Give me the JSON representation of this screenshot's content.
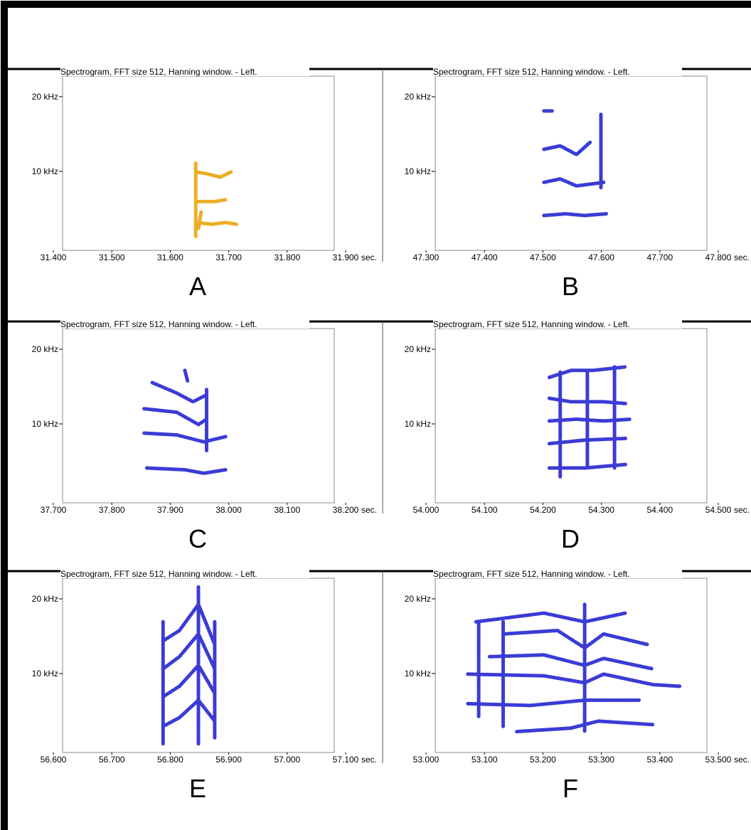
{
  "chart_data": [
    {
      "type": "spectrogram",
      "title": "Spectrogram, FFT size 512, Hanning window. - Left.",
      "panel_label": "A",
      "color": "#e8a000",
      "xlim": [
        31.4,
        31.9
      ],
      "xticks": [
        {
          "value": 31.4,
          "label": "31.400"
        },
        {
          "value": 31.5,
          "label": "31.500"
        },
        {
          "value": 31.6,
          "label": "31.600"
        },
        {
          "value": 31.7,
          "label": "31.700"
        },
        {
          "value": 31.8,
          "label": "31.800"
        },
        {
          "value": 31.9,
          "label": "31.900"
        }
      ],
      "x_unit": "sec.",
      "ylim": [
        0,
        22
      ],
      "yticks": [
        {
          "value": 10,
          "label": "10 kHz"
        },
        {
          "value": 20,
          "label": "20 kHz"
        }
      ]
    },
    {
      "type": "spectrogram",
      "title": "Spectrogram, FFT size 512, Hanning window. - Left.",
      "panel_label": "B",
      "color": "#1a1ad0",
      "xlim": [
        47.3,
        47.8
      ],
      "xticks": [
        {
          "value": 47.3,
          "label": "47.300"
        },
        {
          "value": 47.4,
          "label": "47.400"
        },
        {
          "value": 47.5,
          "label": "47.500"
        },
        {
          "value": 47.6,
          "label": "47.600"
        },
        {
          "value": 47.7,
          "label": "47.700"
        },
        {
          "value": 47.8,
          "label": "47.800"
        }
      ],
      "x_unit": "sec.",
      "ylim": [
        0,
        22
      ],
      "yticks": [
        {
          "value": 10,
          "label": "10 kHz"
        },
        {
          "value": 20,
          "label": "20 kHz"
        }
      ]
    },
    {
      "type": "spectrogram",
      "title": "Spectrogram, FFT size 512, Hanning window. - Left.",
      "panel_label": "C",
      "color": "#1a1ad0",
      "xlim": [
        37.7,
        38.2
      ],
      "xticks": [
        {
          "value": 37.7,
          "label": "37.700"
        },
        {
          "value": 37.8,
          "label": "37.800"
        },
        {
          "value": 37.9,
          "label": "37.900"
        },
        {
          "value": 38.0,
          "label": "38.000"
        },
        {
          "value": 38.1,
          "label": "38.100"
        },
        {
          "value": 38.2,
          "label": "38.200"
        }
      ],
      "x_unit": "sec.",
      "ylim": [
        0,
        22
      ],
      "yticks": [
        {
          "value": 10,
          "label": "10 kHz"
        },
        {
          "value": 20,
          "label": "20 kHz"
        }
      ]
    },
    {
      "type": "spectrogram",
      "title": "Spectrogram, FFT size 512, Hanning window. - Left.",
      "panel_label": "D",
      "color": "#1a1ad0",
      "xlim": [
        54.0,
        54.5
      ],
      "xticks": [
        {
          "value": 54.0,
          "label": "54.000"
        },
        {
          "value": 54.1,
          "label": "54.100"
        },
        {
          "value": 54.2,
          "label": "54.200"
        },
        {
          "value": 54.3,
          "label": "54.300"
        },
        {
          "value": 54.4,
          "label": "54.400"
        },
        {
          "value": 54.5,
          "label": "54.500"
        }
      ],
      "x_unit": "sec.",
      "ylim": [
        0,
        22
      ],
      "yticks": [
        {
          "value": 10,
          "label": "10 kHz"
        },
        {
          "value": 20,
          "label": "20 kHz"
        }
      ]
    },
    {
      "type": "spectrogram",
      "title": "Spectrogram, FFT size 512, Hanning window. - Left.",
      "panel_label": "E",
      "color": "#1a1ad0",
      "xlim": [
        56.6,
        57.1
      ],
      "xticks": [
        {
          "value": 56.6,
          "label": "56.600"
        },
        {
          "value": 56.7,
          "label": "56.700"
        },
        {
          "value": 56.8,
          "label": "56.800"
        },
        {
          "value": 56.9,
          "label": "56.900"
        },
        {
          "value": 57.0,
          "label": "57.000"
        },
        {
          "value": 57.1,
          "label": "57.100"
        }
      ],
      "x_unit": "sec.",
      "ylim": [
        0,
        22
      ],
      "yticks": [
        {
          "value": 10,
          "label": "10 kHz"
        },
        {
          "value": 20,
          "label": "20 kHz"
        }
      ]
    },
    {
      "type": "spectrogram",
      "title": "Spectrogram, FFT size 512, Hanning window. - Left.",
      "panel_label": "F",
      "color": "#1a1ad0",
      "xlim": [
        53.0,
        53.5
      ],
      "xticks": [
        {
          "value": 53.0,
          "label": "53.000"
        },
        {
          "value": 53.1,
          "label": "53.100"
        },
        {
          "value": 53.2,
          "label": "53.200"
        },
        {
          "value": 53.3,
          "label": "53.300"
        },
        {
          "value": 53.4,
          "label": "53.400"
        },
        {
          "value": 53.5,
          "label": "53.500"
        }
      ],
      "x_unit": "sec.",
      "ylim": [
        0,
        22
      ],
      "yticks": [
        {
          "value": 10,
          "label": "10 kHz"
        },
        {
          "value": 20,
          "label": "20 kHz"
        }
      ]
    }
  ]
}
